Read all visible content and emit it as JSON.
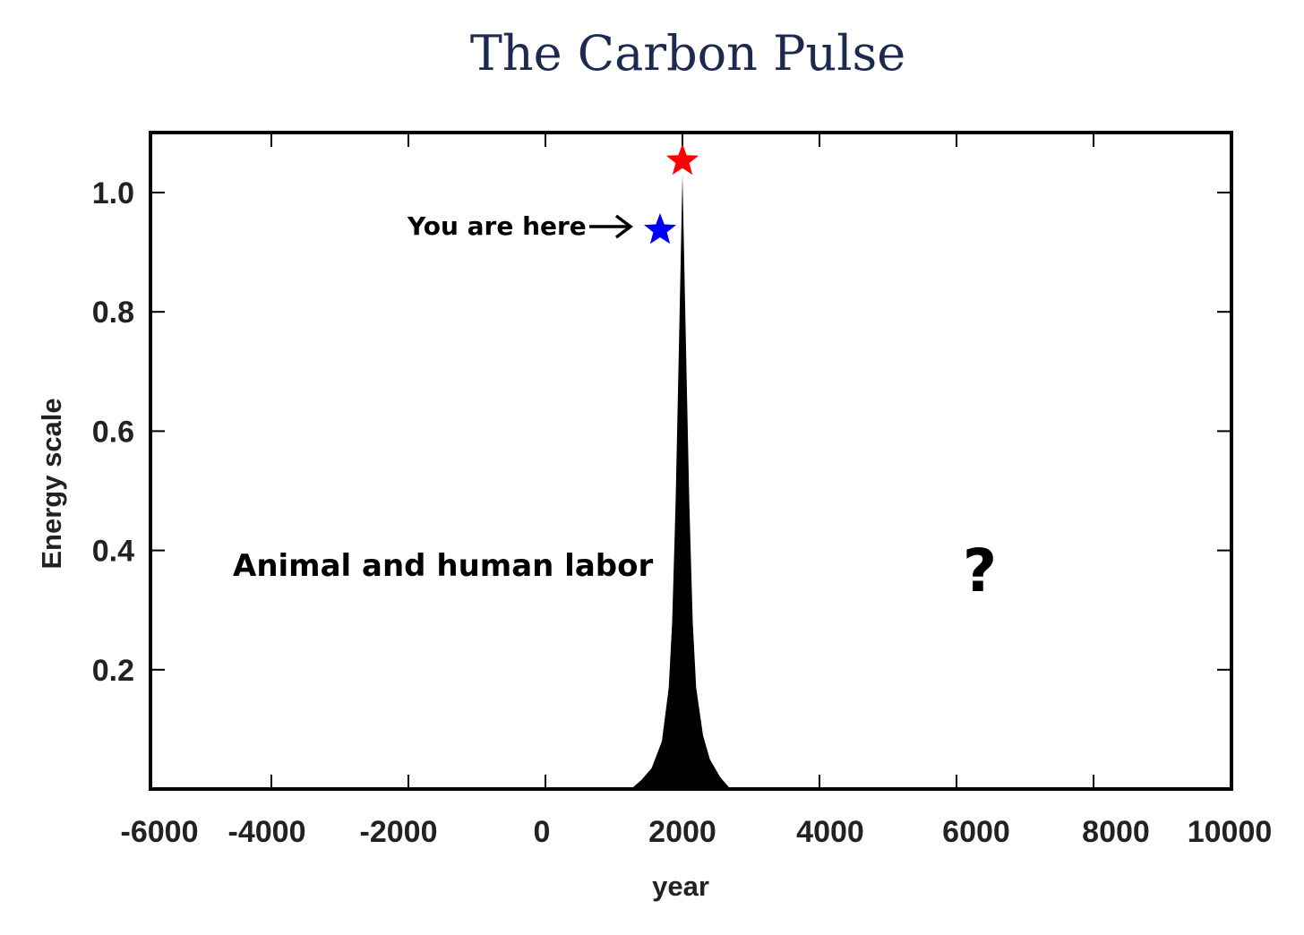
{
  "title": "The Carbon Pulse",
  "chart_data": {
    "type": "area",
    "title": "The Carbon Pulse",
    "xlabel": "year",
    "ylabel": "Energy scale",
    "xlim": [
      -6500,
      10000
    ],
    "ylim": [
      0,
      1.1
    ],
    "x_ticks": [
      -6000,
      -4000,
      -2000,
      0,
      2000,
      4000,
      6000,
      8000,
      10000
    ],
    "x_tick_labels": [
      "-6000",
      "-4000",
      "-2000",
      "0",
      "2000",
      "4000",
      "6000",
      "8000",
      "10000"
    ],
    "y_ticks": [
      0.2,
      0.4,
      0.6,
      0.8,
      1.0
    ],
    "y_tick_labels": [
      "0.2",
      "0.4",
      "0.6",
      "0.8",
      "1.0"
    ],
    "grid": false,
    "series": [
      {
        "color": "#000000",
        "x": [
          1250,
          1400,
          1550,
          1700,
          1800,
          1850,
          1900,
          1950,
          2000,
          2050,
          2100,
          2150,
          2200,
          2300,
          2400,
          2550,
          2700
        ],
        "y": [
          0.0,
          0.015,
          0.035,
          0.08,
          0.17,
          0.28,
          0.48,
          0.75,
          1.03,
          0.75,
          0.48,
          0.28,
          0.17,
          0.09,
          0.05,
          0.02,
          0.0
        ]
      }
    ],
    "annotations": [
      {
        "text": "You are here",
        "x": 1700,
        "y": 0.94,
        "marker": "blue-star",
        "arrow": true
      },
      {
        "text": "",
        "x": 2000,
        "y": 1.05,
        "marker": "red-star"
      },
      {
        "text": "Animal and human labor",
        "x": -1800,
        "y": 0.38
      },
      {
        "text": "?",
        "x": 6100,
        "y": 0.38
      }
    ],
    "colors": {
      "pulse": "#000000",
      "star_current": "#0000ff",
      "star_peak": "#ff0000",
      "title": "#1c2a4f"
    }
  }
}
